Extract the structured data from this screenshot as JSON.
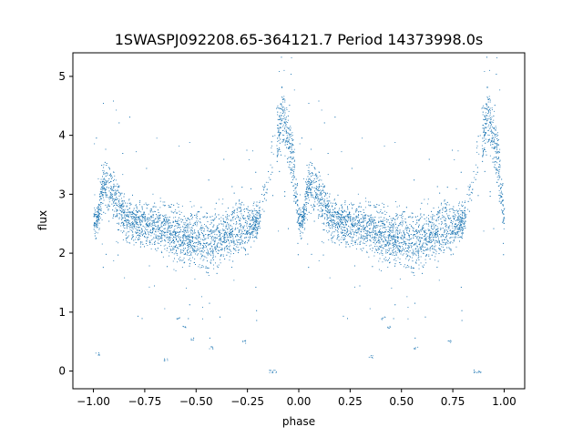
{
  "chart_data": {
    "type": "scatter",
    "title": "1SWASPJ092208.65-364121.7 Period 14373998.0s",
    "xlabel": "phase",
    "ylabel": "flux",
    "xlim": [
      -1.1,
      1.1
    ],
    "ylim": [
      -0.3,
      5.4
    ],
    "xticks": [
      -1.0,
      -0.75,
      -0.5,
      -0.25,
      0.0,
      0.25,
      0.5,
      0.75,
      1.0
    ],
    "xtick_labels": [
      "−1.00",
      "−0.75",
      "−0.50",
      "−0.25",
      "0.00",
      "0.25",
      "0.50",
      "0.75",
      "1.00"
    ],
    "yticks": [
      0,
      1,
      2,
      3,
      4,
      5
    ],
    "ytick_labels": [
      "0",
      "1",
      "2",
      "3",
      "4",
      "5"
    ],
    "grid": false,
    "legend": "none",
    "series": [
      {
        "color": "#1f77b4",
        "description_points": "phase-folded light curve, repeated for phase -1..0 and 0..1",
        "profile": [
          {
            "phase": -1.0,
            "flux": 2.55,
            "spread": 0.18
          },
          {
            "phase": -0.98,
            "flux": 2.55,
            "spread": 0.2
          },
          {
            "phase": -0.96,
            "flux": 3.1,
            "spread": 0.3
          },
          {
            "phase": -0.93,
            "flux": 3.2,
            "spread": 0.3
          },
          {
            "phase": -0.9,
            "flux": 3.0,
            "spread": 0.3
          },
          {
            "phase": -0.85,
            "flux": 2.6,
            "spread": 0.25
          },
          {
            "phase": -0.75,
            "flux": 2.5,
            "spread": 0.25
          },
          {
            "phase": -0.65,
            "flux": 2.4,
            "spread": 0.3
          },
          {
            "phase": -0.57,
            "flux": 2.25,
            "spread": 0.35
          },
          {
            "phase": -0.5,
            "flux": 2.3,
            "spread": 0.3
          },
          {
            "phase": -0.44,
            "flux": 2.15,
            "spread": 0.35
          },
          {
            "phase": -0.35,
            "flux": 2.35,
            "spread": 0.3
          },
          {
            "phase": -0.27,
            "flux": 2.45,
            "spread": 0.35
          },
          {
            "phase": -0.2,
            "flux": 2.55,
            "spread": 0.15
          },
          {
            "phase": -0.08,
            "flux": 4.4,
            "spread": 0.4
          },
          {
            "phase": -0.04,
            "flux": 3.8,
            "spread": 0.4
          },
          {
            "phase": 0.0,
            "flux": 2.55,
            "spread": 0.18
          }
        ],
        "outliers": [
          {
            "phase": -0.14,
            "flux": 0.0
          },
          {
            "phase": -0.12,
            "flux": 0.0
          },
          {
            "phase": 0.86,
            "flux": 0.0
          },
          {
            "phase": 0.88,
            "flux": 0.0
          },
          {
            "phase": -0.59,
            "flux": 0.9
          },
          {
            "phase": -0.56,
            "flux": 0.75
          },
          {
            "phase": -0.52,
            "flux": 0.55
          },
          {
            "phase": 0.41,
            "flux": 0.9
          },
          {
            "phase": 0.44,
            "flux": 0.75
          },
          {
            "phase": -0.65,
            "flux": 0.2
          },
          {
            "phase": 0.35,
            "flux": 0.25
          },
          {
            "phase": -0.98,
            "flux": 0.3
          },
          {
            "phase": -0.43,
            "flux": 0.4
          },
          {
            "phase": 0.57,
            "flux": 0.4
          },
          {
            "phase": -0.27,
            "flux": 0.5
          },
          {
            "phase": 0.73,
            "flux": 0.5
          }
        ]
      }
    ]
  }
}
